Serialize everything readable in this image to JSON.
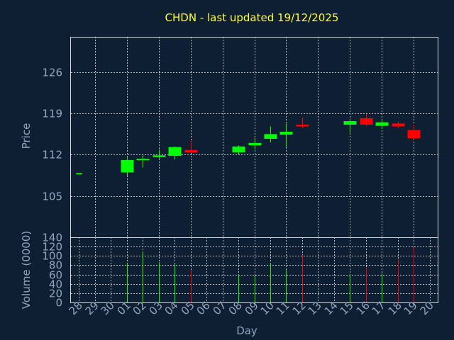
{
  "chart_data": {
    "type": "candlestick",
    "title": "CHDN - last updated 19/12/2025",
    "xlabel": "Day",
    "ylabel_price": "Price",
    "ylabel_volume": "Volume (0000)",
    "days": [
      "28",
      "29",
      "30",
      "01",
      "02",
      "03",
      "04",
      "05",
      "06",
      "07",
      "08",
      "09",
      "10",
      "11",
      "12",
      "13",
      "14",
      "15",
      "16",
      "17",
      "18",
      "19",
      "20"
    ],
    "price_ticks": [
      "105",
      "112",
      "119",
      "126"
    ],
    "volume_ticks": [
      "0",
      "20",
      "40",
      "60",
      "80",
      "100",
      "120",
      "140"
    ],
    "price_ylim": [
      98,
      132
    ],
    "volume_ylim": [
      0,
      140
    ],
    "grid": true,
    "colors": {
      "up": "#00ff00",
      "down": "#ff0000",
      "background": "#0f1f33",
      "title": "#ffff33",
      "label": "#8fa6be",
      "frame": "#d9d9d9"
    },
    "candles": [
      {
        "day": "28",
        "open": 108.9,
        "high": 108.9,
        "low": 108.9,
        "close": 108.9,
        "volume": 0
      },
      {
        "day": "01",
        "open": 109.0,
        "high": 111.7,
        "low": 108.4,
        "close": 111.1,
        "volume": 85
      },
      {
        "day": "02",
        "open": 111.1,
        "high": 111.9,
        "low": 109.8,
        "close": 111.3,
        "volume": 110
      },
      {
        "day": "03",
        "open": 111.6,
        "high": 112.9,
        "low": 111.4,
        "close": 111.9,
        "volume": 86
      },
      {
        "day": "04",
        "open": 111.8,
        "high": 113.4,
        "low": 111.2,
        "close": 113.3,
        "volume": 82
      },
      {
        "day": "05",
        "open": 112.8,
        "high": 114.4,
        "low": 112.5,
        "close": 112.4,
        "volume": 70
      },
      {
        "day": "08",
        "open": 112.4,
        "high": 113.6,
        "low": 112.0,
        "close": 113.4,
        "volume": 60
      },
      {
        "day": "09",
        "open": 113.6,
        "high": 114.8,
        "low": 112.9,
        "close": 114.0,
        "volume": 58
      },
      {
        "day": "10",
        "open": 114.7,
        "high": 116.8,
        "low": 114.1,
        "close": 115.5,
        "volume": 85
      },
      {
        "day": "11",
        "open": 115.4,
        "high": 117.3,
        "low": 113.3,
        "close": 115.9,
        "volume": 70
      },
      {
        "day": "12",
        "open": 117.1,
        "high": 118.3,
        "low": 116.5,
        "close": 116.8,
        "volume": 102
      },
      {
        "day": "15",
        "open": 117.1,
        "high": 118.1,
        "low": 115.7,
        "close": 117.7,
        "volume": 60
      },
      {
        "day": "16",
        "open": 118.2,
        "high": 118.9,
        "low": 116.9,
        "close": 117.1,
        "volume": 75
      },
      {
        "day": "17",
        "open": 116.9,
        "high": 117.8,
        "low": 116.5,
        "close": 117.5,
        "volume": 62
      },
      {
        "day": "18",
        "open": 117.3,
        "high": 117.6,
        "low": 116.5,
        "close": 116.8,
        "volume": 92
      },
      {
        "day": "19",
        "open": 116.2,
        "high": 117.1,
        "low": 114.6,
        "close": 114.8,
        "volume": 120
      }
    ]
  }
}
